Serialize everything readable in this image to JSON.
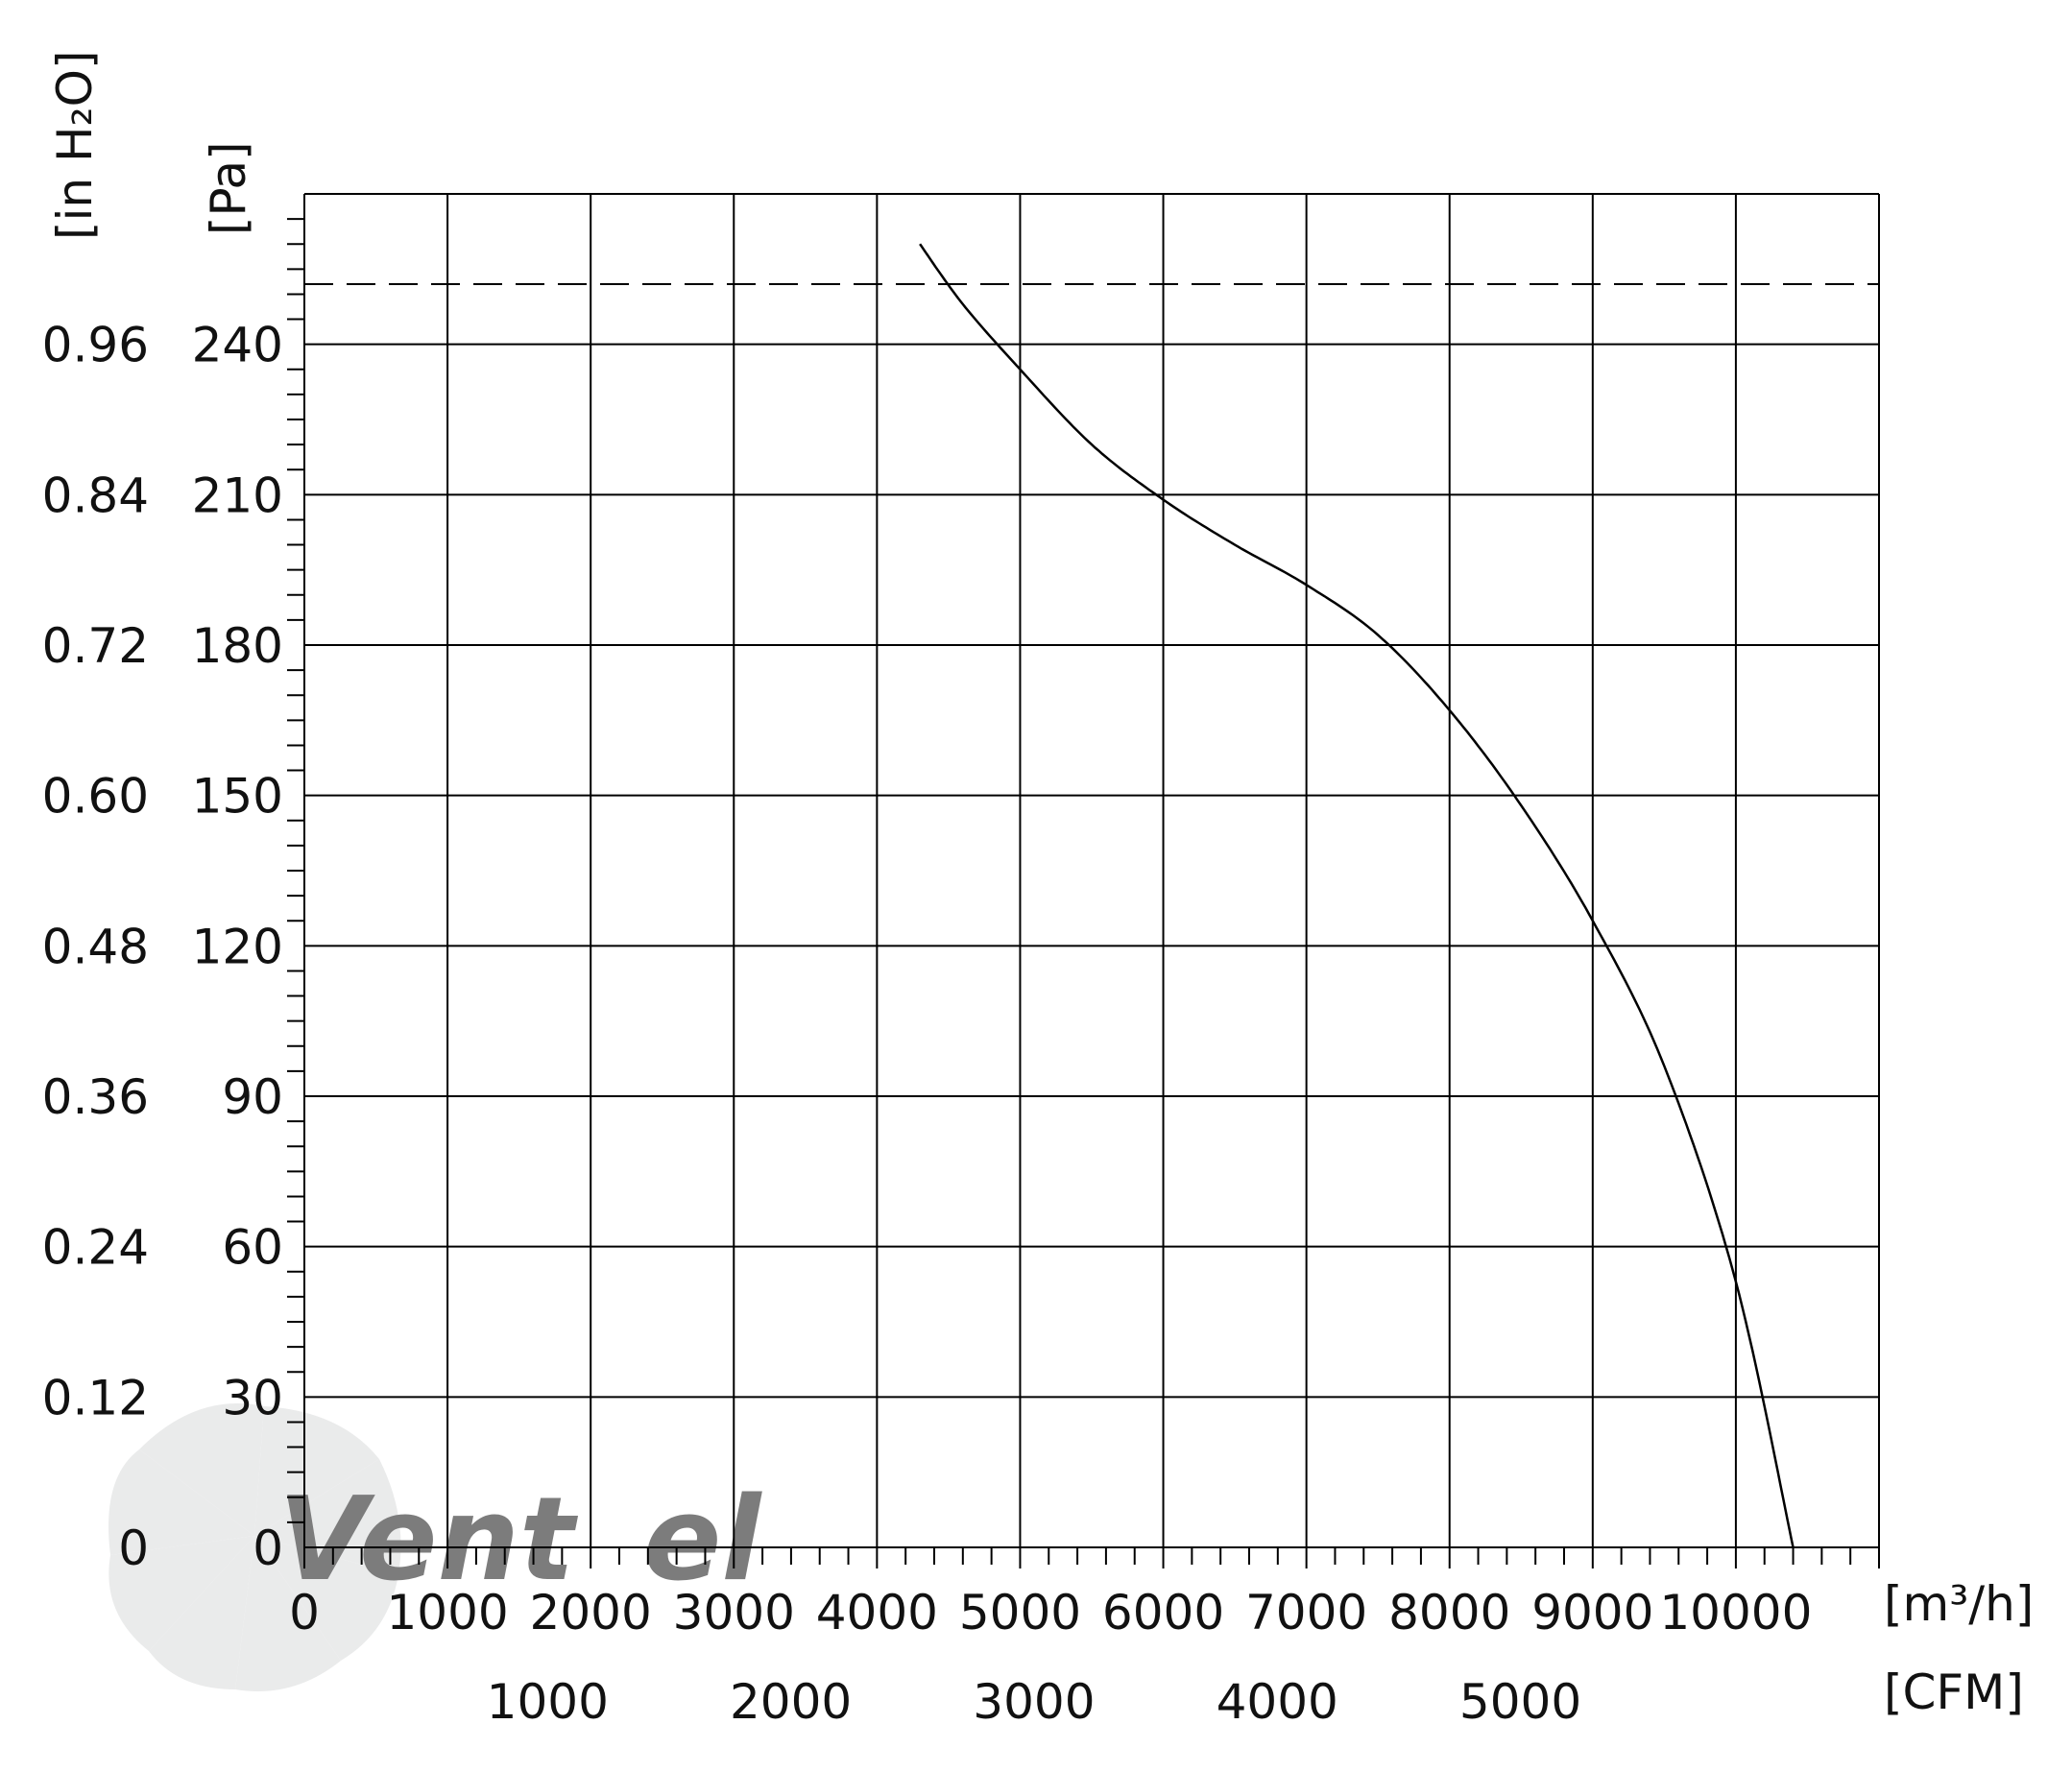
{
  "chart_data": {
    "type": "line",
    "title": "",
    "xlabel": "[m³/h]",
    "xlabel2": "[CFM]",
    "ylabel": "[Pa]",
    "ylabel2": "[in H₂O]",
    "xlim": [
      0,
      11000
    ],
    "ylim": [
      0,
      270
    ],
    "grid": true,
    "x_ticks": [
      "0",
      "1000",
      "2000",
      "3000",
      "4000",
      "5000",
      "6000",
      "7000",
      "8000",
      "9000",
      "10000"
    ],
    "cfm_ticks": [
      {
        "value": 1000,
        "label": "1000"
      },
      {
        "value": 2000,
        "label": "2000"
      },
      {
        "value": 3000,
        "label": "3000"
      },
      {
        "value": 4000,
        "label": "4000"
      },
      {
        "value": 5000,
        "label": "5000"
      }
    ],
    "y_ticks": [
      "0",
      "30",
      "60",
      "90",
      "120",
      "150",
      "180",
      "210",
      "240"
    ],
    "y_ticks_inh2o": [
      "0",
      "0.12",
      "0.24",
      "0.36",
      "0.48",
      "0.60",
      "0.72",
      "0.84",
      "0.96"
    ],
    "reference_line": {
      "y": 252,
      "style": "dashed"
    },
    "series": [
      {
        "x": [
          4300,
          4600,
          5000,
          5500,
          6000,
          6500,
          7000,
          7500,
          8000,
          8500,
          9000,
          9500,
          10000,
          10400
        ],
        "y": [
          260,
          248,
          235,
          220,
          209,
          200,
          192,
          182,
          167,
          148,
          125,
          96,
          53,
          0
        ]
      }
    ]
  },
  "watermark": {
    "text": "Ventel",
    "fan_icon": "fan-icon"
  }
}
